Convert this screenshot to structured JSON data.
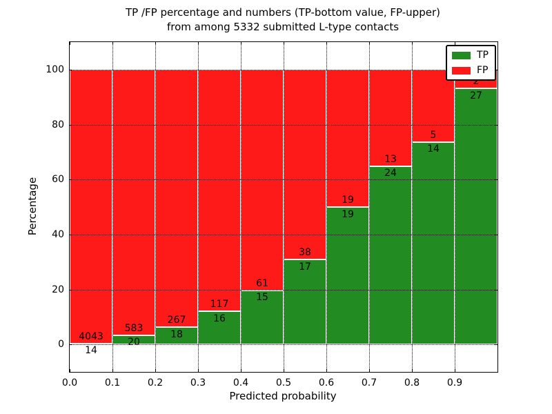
{
  "chart_data": {
    "type": "bar",
    "stacked": true,
    "title": "TP /FP percentage and numbers (TP-bottom value, FP-upper)\nfrom among 5332 submitted L-type contacts",
    "title_line1": "TP /FP percentage and numbers (TP-bottom value, FP-upper)",
    "title_line2": "from among 5332 submitted L-type contacts",
    "xlabel": "Predicted probability",
    "ylabel": "Percentage",
    "categories": [
      "0.0-0.1",
      "0.1-0.2",
      "0.2-0.3",
      "0.3-0.4",
      "0.4-0.5",
      "0.5-0.6",
      "0.6-0.7",
      "0.7-0.8",
      "0.8-0.9",
      "0.9-1.0"
    ],
    "x_tick_labels": [
      "0.0",
      "0.1",
      "0.2",
      "0.3",
      "0.4",
      "0.5",
      "0.6",
      "0.7",
      "0.8",
      "0.9"
    ],
    "y_tick_labels": [
      "0",
      "20",
      "40",
      "60",
      "80",
      "100"
    ],
    "y_tick_values": [
      0,
      20,
      40,
      60,
      80,
      100
    ],
    "ylim": [
      -10,
      110
    ],
    "bar_total_percent": 100,
    "series": [
      {
        "name": "TP",
        "color": "#228b22",
        "values": [
          14,
          20,
          18,
          16,
          15,
          17,
          19,
          24,
          14,
          27
        ]
      },
      {
        "name": "FP",
        "color": "#ff1a1a",
        "values": [
          4043,
          583,
          267,
          117,
          61,
          38,
          19,
          13,
          5,
          2
        ]
      }
    ],
    "value_annotation_rule": "bars normalized to 100%; TP count printed just below TP/FP boundary, FP count just above it",
    "legend": {
      "entries": [
        "TP",
        "FP"
      ],
      "position": "upper right"
    },
    "grid": {
      "on": true,
      "style": "dotted",
      "color": "#000000"
    },
    "bar_edge_color": "#ffffff"
  }
}
